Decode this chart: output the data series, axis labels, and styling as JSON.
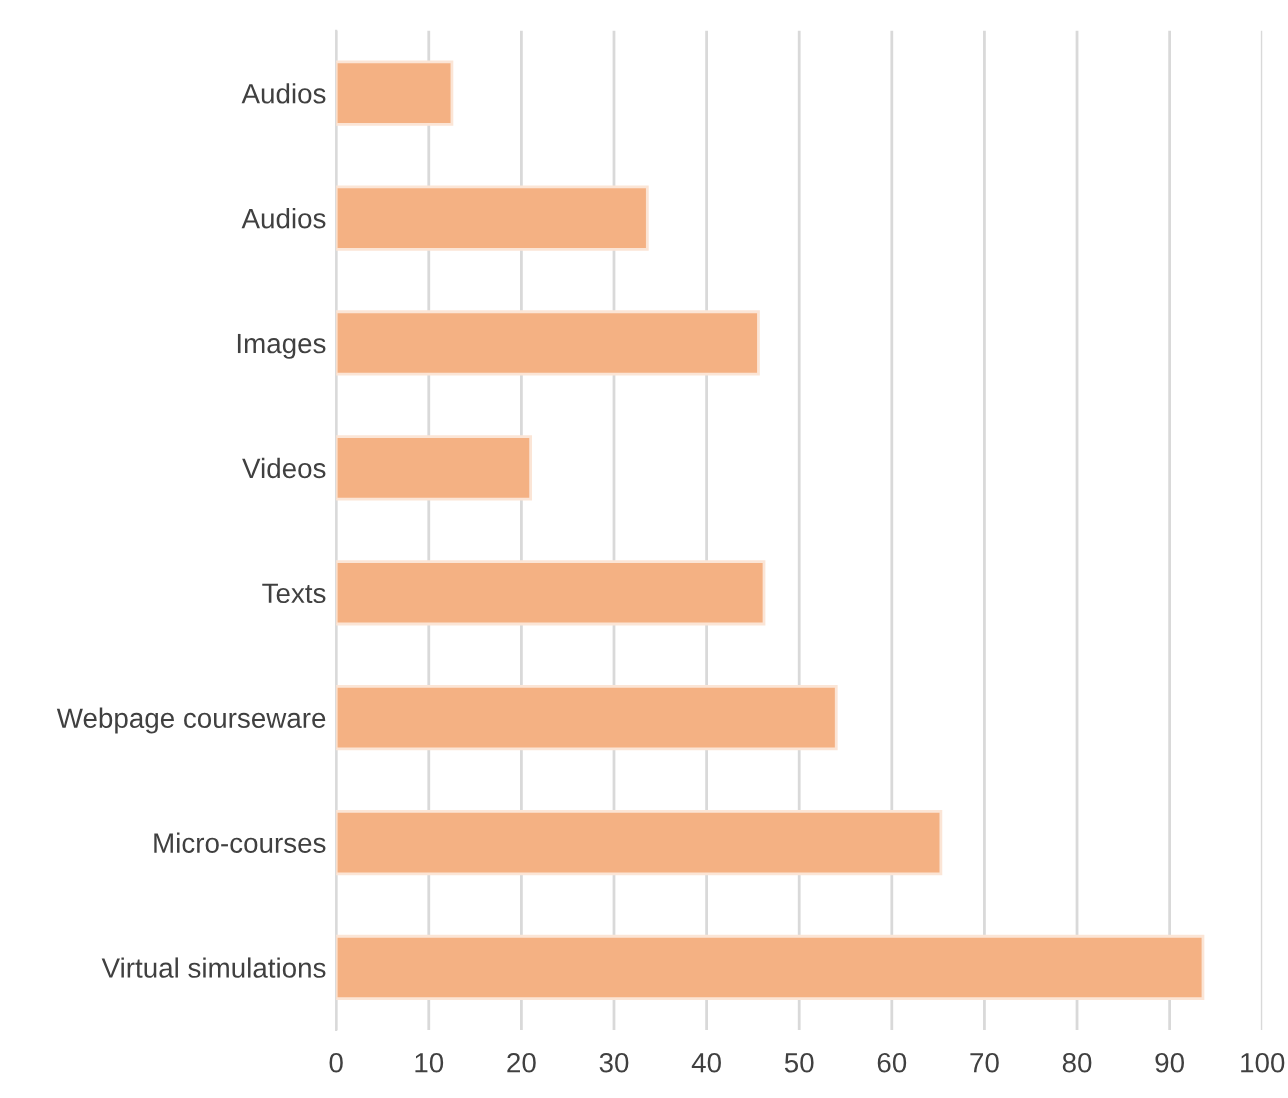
{
  "chart_data": {
    "type": "bar",
    "orientation": "horizontal",
    "categories": [
      "Audios",
      "Audios",
      "Images",
      "Videos",
      "Texts",
      "Webpage courseware",
      "Micro-courses",
      "Virtual simulations"
    ],
    "values": [
      12.5,
      33.6,
      45.6,
      21,
      46.2,
      54,
      65.3,
      93.6
    ],
    "color": "#f4b183",
    "xlim": [
      0,
      100
    ],
    "xticks": [
      0,
      10,
      20,
      30,
      40,
      50,
      60,
      70,
      80,
      90,
      100
    ],
    "grid": "x"
  }
}
